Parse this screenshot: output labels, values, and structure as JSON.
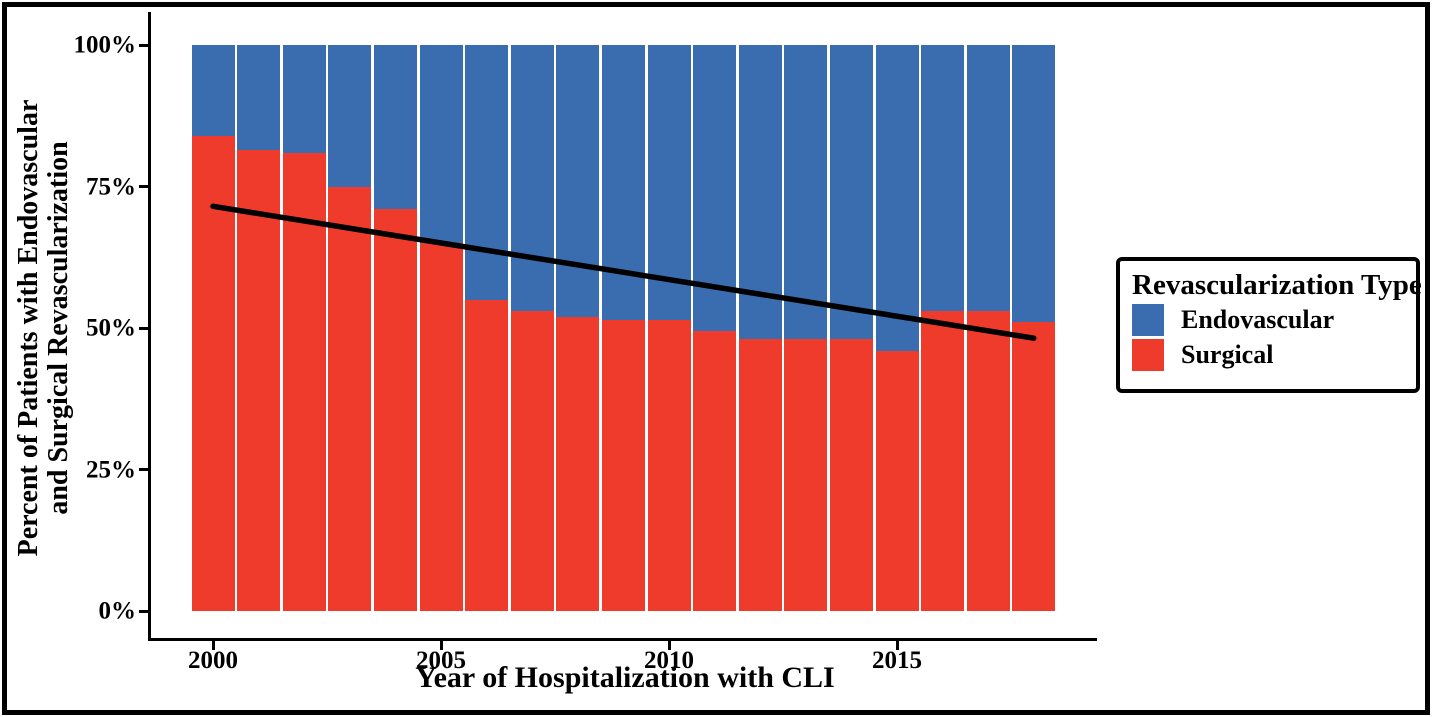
{
  "figure": {
    "y_axis_title_line1": "Percent of Patients with Endovascular",
    "y_axis_title_line2": "and Surgical Revascularization",
    "x_axis_title": "Year of Hospitalization with CLI"
  },
  "legend": {
    "title": "Revascularization Type",
    "items": [
      {
        "label": "Endovascular",
        "color": "#3A6CB0"
      },
      {
        "label": "Surgical",
        "color": "#EF3B2C"
      }
    ]
  },
  "chart_data": {
    "type": "bar",
    "stacked": true,
    "title": "",
    "xlabel": "Year of Hospitalization with CLI",
    "ylabel": "Percent of Patients with Endovascular and Surgical Revascularization",
    "categories": [
      2000,
      2001,
      2002,
      2003,
      2004,
      2005,
      2006,
      2007,
      2008,
      2009,
      2010,
      2011,
      2012,
      2013,
      2014,
      2015,
      2016,
      2017,
      2018
    ],
    "series": [
      {
        "name": "Endovascular",
        "color": "#3A6CB0",
        "values": [
          16,
          18.5,
          19,
          25,
          29,
          35,
          45,
          47,
          48,
          48.5,
          48.5,
          50.5,
          52,
          52,
          52,
          54,
          47,
          47,
          49
        ]
      },
      {
        "name": "Surgical",
        "color": "#EF3B2C",
        "values": [
          84,
          81.5,
          81,
          75,
          71,
          65,
          55,
          53,
          52,
          51.5,
          51.5,
          49.5,
          48,
          48,
          48,
          46,
          53,
          53,
          51
        ]
      }
    ],
    "y_ticks": [
      {
        "label": "100%",
        "value": 100
      },
      {
        "label": "75%",
        "value": 75
      },
      {
        "label": "50%",
        "value": 50
      },
      {
        "label": "25%",
        "value": 25
      },
      {
        "label": "0%",
        "value": 0
      }
    ],
    "x_ticks": [
      {
        "label": "2000",
        "year": 2000
      },
      {
        "label": "2005",
        "year": 2005
      },
      {
        "label": "2010",
        "year": 2010
      },
      {
        "label": "2015",
        "year": 2015
      }
    ],
    "ylim": [
      0,
      100
    ],
    "xlim": [
      2000,
      2018
    ],
    "grid": false,
    "legend_position": "right",
    "trend_line": {
      "x_start": 2000,
      "y_start": 71.5,
      "x_end": 2018,
      "y_end": 48.2,
      "color": "#000000"
    }
  }
}
